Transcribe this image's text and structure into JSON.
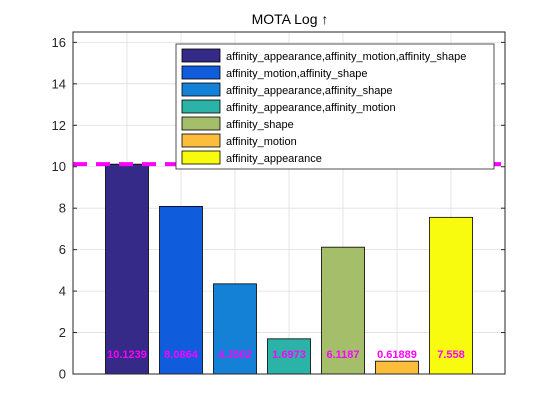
{
  "chart_data": {
    "type": "bar",
    "title": "MOTA Log ↑",
    "xlabel": "",
    "ylabel": "",
    "ylim": [
      0,
      16.5
    ],
    "yticks": [
      0,
      2,
      4,
      6,
      8,
      10,
      12,
      14,
      16
    ],
    "grid": true,
    "legend_position": "top-right",
    "reference_line": {
      "y": 10.1239,
      "style": "dashed",
      "color": "#ff00ff"
    },
    "label_color": "#ff00ff",
    "series": [
      {
        "name": "affinity_appearance,affinity_motion,affinity_shape",
        "value": 10.1239,
        "label": "10.1239",
        "color": "#352a87"
      },
      {
        "name": "affinity_motion,affinity_shape",
        "value": 8.0864,
        "label": "8.0864",
        "color": "#0f5cdd"
      },
      {
        "name": "affinity_appearance,affinity_shape",
        "value": 4.3502,
        "label": "4.3502",
        "color": "#1481d6"
      },
      {
        "name": "affinity_appearance,affinity_motion",
        "value": 1.6973,
        "label": "1.6973",
        "color": "#2cb3a8"
      },
      {
        "name": "affinity_shape",
        "value": 6.1187,
        "label": "6.1187",
        "color": "#a5be6a"
      },
      {
        "name": "affinity_motion",
        "value": 0.61889,
        "label": "0.61889",
        "color": "#fdbd3c"
      },
      {
        "name": "affinity_appearance",
        "value": 7.558,
        "label": "7.558",
        "color": "#f9fb0e"
      }
    ]
  }
}
